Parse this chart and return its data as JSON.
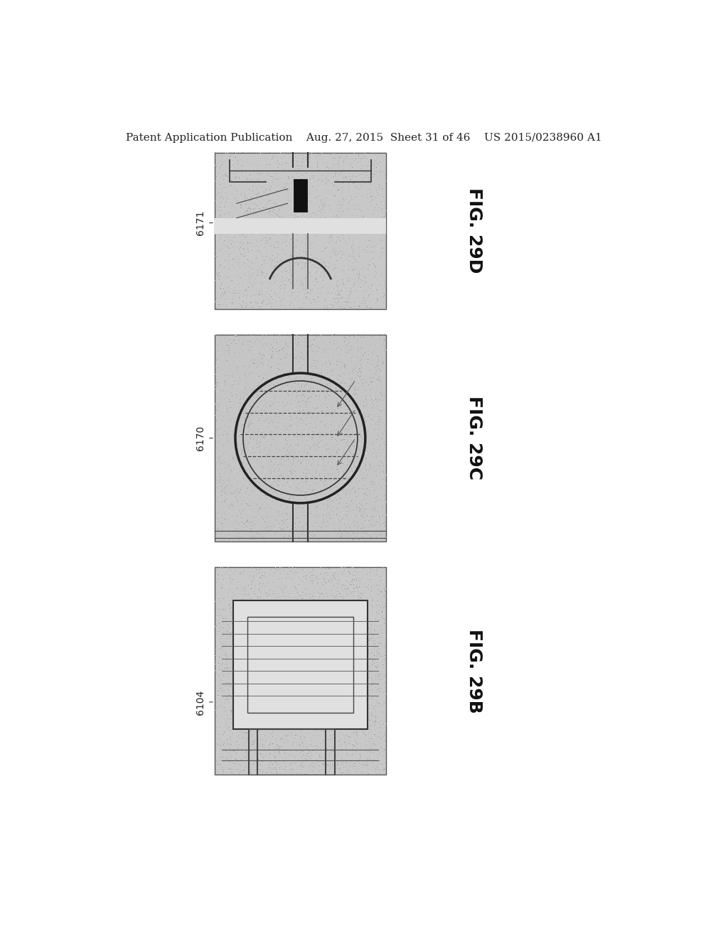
{
  "page_background": "#ffffff",
  "header_text": "Patent Application Publication    Aug. 27, 2015  Sheet 31 of 46    US 2015/0238960 A1",
  "header_fontsize": 11,
  "fig29d_label": "FIG. 29D",
  "fig29c_label": "FIG. 29C",
  "fig29b_label": "FIG. 29B",
  "ref29d": "6171",
  "ref29c": "6170",
  "ref29b": "6104",
  "fig_label_fontsize": 18,
  "ref_label_fontsize": 10
}
